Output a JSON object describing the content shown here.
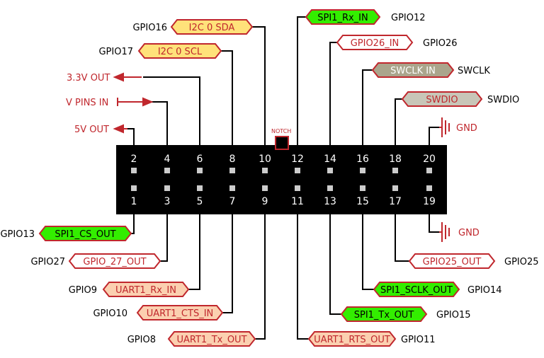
{
  "colors": {
    "red": "#c0272d",
    "green_fill": "#33ee00",
    "yellow_fill": "#ffe27a",
    "salmon_fill": "#fbd0b0",
    "white_fill": "#ffffff",
    "swclk_fill": "#aaa58c",
    "swdio_fill": "#c8c6b8",
    "header": "#000000",
    "pin_dot": "#cccccc"
  },
  "header": {
    "notch": "NOTCH",
    "top_pins": [
      "2",
      "4",
      "6",
      "8",
      "10",
      "12",
      "14",
      "16",
      "18",
      "20"
    ],
    "bottom_pins": [
      "1",
      "3",
      "5",
      "7",
      "9",
      "11",
      "13",
      "15",
      "17",
      "19"
    ]
  },
  "power": {
    "v33": "3.3V OUT",
    "vpins": "V PINS IN",
    "v5": "5V OUT",
    "gnd_top": "GND",
    "gnd_bottom": "GND"
  },
  "top_left": [
    {
      "gpio": "GPIO16",
      "label": "I2C 0 SDA",
      "style": "yellow"
    },
    {
      "gpio": "GPIO17",
      "label": "I2C 0 SCL",
      "style": "yellow"
    }
  ],
  "top_right": [
    {
      "label": "SPI1_Rx_IN",
      "gpio": "GPIO12",
      "style": "green"
    },
    {
      "label": "GPIO26_IN",
      "gpio": "GPIO26",
      "style": "white"
    },
    {
      "label": "SWCLK IN",
      "gpio": "SWCLK",
      "style": "swclk"
    },
    {
      "label": "SWDIO",
      "gpio": "SWDIO",
      "style": "swdio"
    }
  ],
  "bottom_left": [
    {
      "gpio": "GPIO13",
      "label": "SPI1_CS_OUT",
      "style": "green"
    },
    {
      "gpio": "GPIO27",
      "label": "GPIO_27_OUT",
      "style": "white"
    },
    {
      "gpio": "GPIO9",
      "label": "UART1_Rx_IN",
      "style": "salmon"
    },
    {
      "gpio": "GPIO10",
      "label": "UART1_CTS_IN",
      "style": "salmon"
    },
    {
      "gpio": "GPIO8",
      "label": "UART1_Tx_OUT",
      "style": "salmon"
    }
  ],
  "bottom_right": [
    {
      "label": "GPIO25_OUT",
      "gpio": "GPIO25",
      "style": "white"
    },
    {
      "label": "SPI1_SCLK_OUT",
      "gpio": "GPIO14",
      "style": "green"
    },
    {
      "label": "SPI1_Tx_OUT",
      "gpio": "GPIO15",
      "style": "green"
    },
    {
      "label": "UART1_RTS_OUT",
      "gpio": "GPIO11",
      "style": "salmon"
    }
  ]
}
